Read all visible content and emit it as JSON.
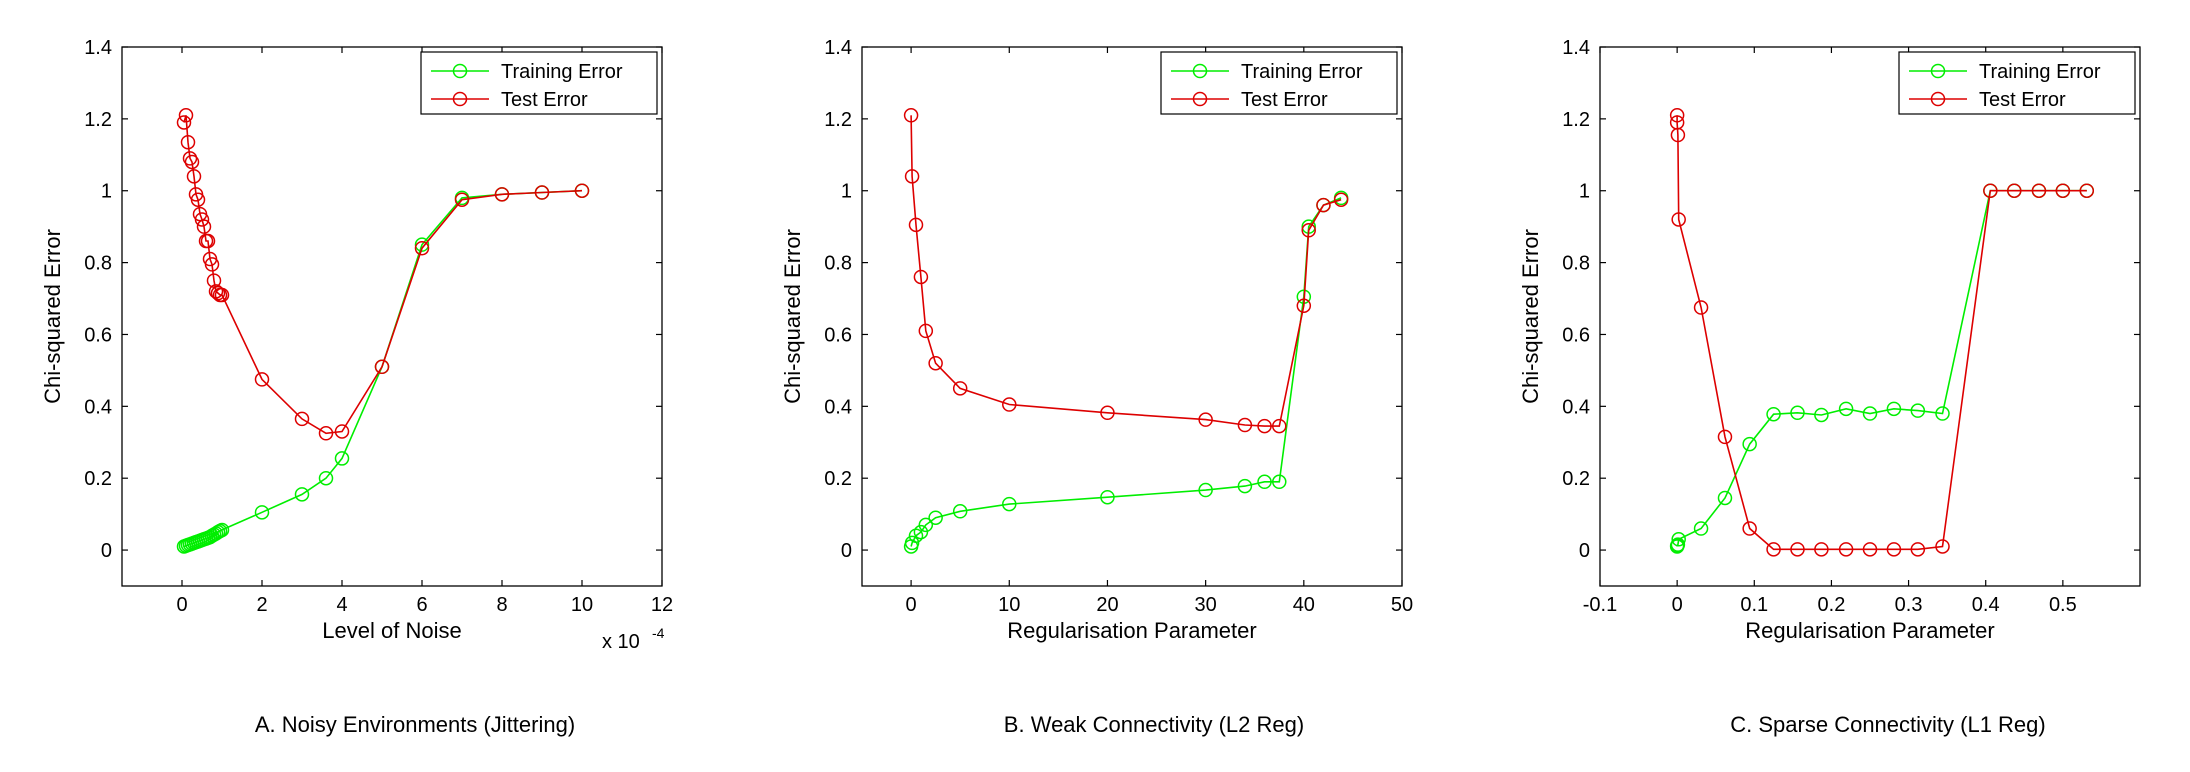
{
  "legend": {
    "training_label": "Training Error",
    "test_label": "Test Error"
  },
  "colors": {
    "training": "#00ee00",
    "test": "#dd0000",
    "axis": "#000000"
  },
  "chart_data": [
    {
      "type": "line",
      "caption": "A. Noisy Environments (Jittering)",
      "xlabel": "Level of Noise",
      "ylabel": "Chi-squared Error",
      "x_multiplier_label": "x 10",
      "x_multiplier_exp": "-4",
      "xlim": [
        -1.5,
        12
      ],
      "ylim": [
        -0.1,
        1.4
      ],
      "xticks": [
        0,
        2,
        4,
        6,
        8,
        10,
        12
      ],
      "xtick_labels": [
        "0",
        "2",
        "4",
        "6",
        "8",
        "10",
        "12"
      ],
      "yticks": [
        0,
        0.2,
        0.4,
        0.6,
        0.8,
        1,
        1.2,
        1.4
      ],
      "ytick_labels": [
        "0",
        "0.2",
        "0.4",
        "0.6",
        "0.8",
        "1",
        "1.2",
        "1.4"
      ],
      "legend_position": "top-right",
      "series": [
        {
          "name": "Training Error",
          "color": "#00ee00",
          "x": [
            0.05,
            0.1,
            0.15,
            0.2,
            0.25,
            0.3,
            0.35,
            0.4,
            0.45,
            0.5,
            0.55,
            0.6,
            0.65,
            0.7,
            0.75,
            0.8,
            0.85,
            0.9,
            0.95,
            1.0,
            2,
            3,
            3.6,
            4,
            5,
            6,
            7,
            8,
            9,
            10
          ],
          "y": [
            0.01,
            0.012,
            0.014,
            0.016,
            0.018,
            0.02,
            0.022,
            0.024,
            0.026,
            0.028,
            0.03,
            0.032,
            0.034,
            0.036,
            0.04,
            0.043,
            0.046,
            0.05,
            0.053,
            0.056,
            0.105,
            0.155,
            0.2,
            0.255,
            0.51,
            0.85,
            0.98,
            0.99,
            0.995,
            1.0
          ]
        },
        {
          "name": "Test Error",
          "color": "#dd0000",
          "x": [
            0.05,
            0.1,
            0.15,
            0.2,
            0.25,
            0.3,
            0.35,
            0.4,
            0.45,
            0.5,
            0.55,
            0.6,
            0.65,
            0.7,
            0.75,
            0.8,
            0.85,
            0.9,
            0.95,
            1.0,
            2,
            3,
            3.6,
            4,
            5,
            6,
            7,
            8,
            9,
            10
          ],
          "y": [
            1.19,
            1.21,
            1.135,
            1.09,
            1.08,
            1.04,
            0.99,
            0.975,
            0.935,
            0.92,
            0.9,
            0.86,
            0.86,
            0.81,
            0.795,
            0.75,
            0.72,
            0.715,
            0.71,
            0.71,
            0.475,
            0.365,
            0.325,
            0.33,
            0.51,
            0.84,
            0.975,
            0.99,
            0.995,
            1.0
          ]
        }
      ]
    },
    {
      "type": "line",
      "caption": "B. Weak Connectivity (L2 Reg)",
      "xlabel": "Regularisation Parameter",
      "ylabel": "Chi-squared Error",
      "xlim": [
        -5,
        50
      ],
      "ylim": [
        -0.1,
        1.4
      ],
      "xticks": [
        0,
        10,
        20,
        30,
        40,
        50
      ],
      "xtick_labels": [
        "0",
        "10",
        "20",
        "30",
        "40",
        "50"
      ],
      "yticks": [
        0,
        0.2,
        0.4,
        0.6,
        0.8,
        1,
        1.2,
        1.4
      ],
      "ytick_labels": [
        "0",
        "0.2",
        "0.4",
        "0.6",
        "0.8",
        "1",
        "1.2",
        "1.4"
      ],
      "legend_position": "top-right",
      "series": [
        {
          "name": "Training Error",
          "color": "#00ee00",
          "x": [
            0,
            0.1,
            0.5,
            1,
            1.5,
            2.5,
            5,
            10,
            20,
            30,
            34,
            36,
            37.5,
            40,
            40.5,
            42,
            43.8
          ],
          "y": [
            0.01,
            0.02,
            0.04,
            0.05,
            0.07,
            0.09,
            0.108,
            0.128,
            0.147,
            0.167,
            0.178,
            0.19,
            0.19,
            0.705,
            0.9,
            0.96,
            0.98
          ]
        },
        {
          "name": "Test Error",
          "color": "#dd0000",
          "x": [
            0,
            0.1,
            0.5,
            1,
            1.5,
            2.5,
            5,
            10,
            20,
            30,
            34,
            36,
            37.5,
            40,
            40.5,
            42,
            43.8
          ],
          "y": [
            1.21,
            1.04,
            0.905,
            0.76,
            0.61,
            0.52,
            0.45,
            0.405,
            0.382,
            0.363,
            0.348,
            0.345,
            0.345,
            0.68,
            0.89,
            0.96,
            0.975
          ]
        }
      ]
    },
    {
      "type": "line",
      "caption": "C. Sparse Connectivity (L1 Reg)",
      "xlabel": "Regularisation Parameter",
      "ylabel": "Chi-squared Error",
      "xlim": [
        -0.1,
        0.6
      ],
      "ylim": [
        -0.1,
        1.4
      ],
      "xticks": [
        -0.1,
        0,
        0.1,
        0.2,
        0.3,
        0.4,
        0.5
      ],
      "xtick_labels": [
        "-0.1",
        "0",
        "0.1",
        "0.2",
        "0.3",
        "0.4",
        "0.5"
      ],
      "yticks": [
        0,
        0.2,
        0.4,
        0.6,
        0.8,
        1,
        1.2,
        1.4
      ],
      "ytick_labels": [
        "0",
        "0.2",
        "0.4",
        "0.6",
        "0.8",
        "1",
        "1.2",
        "1.4"
      ],
      "legend_position": "top-right",
      "series": [
        {
          "name": "Training Error",
          "color": "#00ee00",
          "x": [
            0,
            0,
            0.001,
            0.002,
            0.031,
            0.062,
            0.094,
            0.125,
            0.156,
            0.187,
            0.219,
            0.25,
            0.281,
            0.312,
            0.344,
            0.406,
            0.437,
            0.469,
            0.5,
            0.531
          ],
          "y": [
            0.01,
            0.012,
            0.015,
            0.03,
            0.06,
            0.145,
            0.295,
            0.378,
            0.382,
            0.376,
            0.393,
            0.38,
            0.393,
            0.388,
            0.38,
            1.0,
            1.0,
            1.0,
            1.0,
            1.0
          ]
        },
        {
          "name": "Test Error",
          "color": "#dd0000",
          "x": [
            0,
            0,
            0.001,
            0.002,
            0.031,
            0.062,
            0.094,
            0.125,
            0.156,
            0.187,
            0.219,
            0.25,
            0.281,
            0.312,
            0.344,
            0.406,
            0.437,
            0.469,
            0.5,
            0.531
          ],
          "y": [
            1.21,
            1.19,
            1.155,
            0.92,
            0.675,
            0.315,
            0.06,
            0.002,
            0.002,
            0.002,
            0.002,
            0.002,
            0.002,
            0.002,
            0.01,
            1.0,
            1.0,
            1.0,
            1.0,
            1.0
          ]
        }
      ]
    }
  ]
}
